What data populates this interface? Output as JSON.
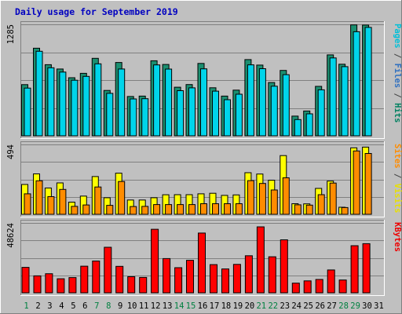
{
  "chart_data": {
    "type": "bar",
    "title": "Daily usage for September 2019",
    "days": [
      "1",
      "2",
      "3",
      "4",
      "5",
      "6",
      "7",
      "8",
      "9",
      "10",
      "11",
      "12",
      "13",
      "14",
      "15",
      "16",
      "17",
      "18",
      "19",
      "20",
      "21",
      "22",
      "23",
      "24",
      "25",
      "26",
      "27",
      "28",
      "29",
      "30",
      "31"
    ],
    "weekend_days": [
      "1",
      "7",
      "8",
      "14",
      "15",
      "21",
      "22",
      "28",
      "29"
    ],
    "panels": [
      {
        "ymax_label": "1285",
        "ymax": 1285,
        "axis_labels": [
          {
            "text": "Pages",
            "color": "#00c0d8"
          },
          {
            "text": " / ",
            "color": "#444444"
          },
          {
            "text": "Files",
            "color": "#3070c0"
          },
          {
            "text": " / ",
            "color": "#444444"
          },
          {
            "text": "Hits",
            "color": "#008060"
          }
        ],
        "series": [
          {
            "name": "Hits",
            "color": "#1b8f70",
            "values": [
              590,
              1010,
              820,
              770,
              670,
              720,
              893,
              523,
              845,
              453,
              458,
              865,
              823,
              560,
              591,
              834,
              554,
              458,
              527,
              879,
              815,
              614,
              754,
              227,
              286,
              570,
              933,
              825,
              1279,
              1277,
              0
            ]
          },
          {
            "name": "Pages",
            "color": "#00d4ea",
            "values": [
              550,
              975,
              785,
              735,
              641,
              685,
              830,
              490,
              770,
              425,
              428,
              817,
              769,
              520,
              553,
              772,
              515,
              416,
              480,
              818,
              774,
              572,
              705,
              187,
              253,
              530,
              898,
              797,
              1200,
              1250,
              0
            ]
          }
        ]
      },
      {
        "ymax_label": "494",
        "ymax": 494,
        "axis_labels": [
          {
            "text": "Sites",
            "color": "#ff8c00"
          },
          {
            "text": " / ",
            "color": "#444444"
          },
          {
            "text": "Visits",
            "color": "#e8e000"
          }
        ],
        "series": [
          {
            "name": "Visits",
            "color": "#ffff00",
            "values": [
              211,
              286,
              186,
              222,
              86,
              129,
              267,
              117,
              291,
              101,
              101,
              117,
              138,
              139,
              139,
              145,
              149,
              134,
              137,
              294,
              285,
              241,
              415,
              75,
              74,
              183,
              235,
              50,
              470,
              475,
              0
            ]
          },
          {
            "name": "Sites",
            "color": "#ff8c00",
            "values": [
              145,
              237,
              125,
              176,
              56,
              66,
              193,
              63,
              232,
              55,
              56,
              69,
              69,
              69,
              69,
              75,
              75,
              75,
              75,
              238,
              218,
              172,
              258,
              67,
              65,
              139,
              221,
              48,
              448,
              430,
              0
            ]
          }
        ]
      },
      {
        "ymax_label": "48624",
        "ymax": 48624,
        "axis_labels": [
          {
            "text": "KBytes",
            "color": "#ee0000"
          }
        ],
        "series": [
          {
            "name": "KBytes",
            "color": "#ff0000",
            "values": [
              17700,
              11800,
              13300,
              9800,
              10600,
              18500,
              22100,
              31700,
              18400,
              11200,
              10700,
              44200,
              23800,
              17500,
              22600,
              41600,
              19600,
              16600,
              19800,
              25800,
              45900,
              25100,
              36900,
              6700,
              8300,
              9300,
              15900,
              8900,
              32800,
              34200,
              0
            ]
          }
        ]
      }
    ]
  }
}
